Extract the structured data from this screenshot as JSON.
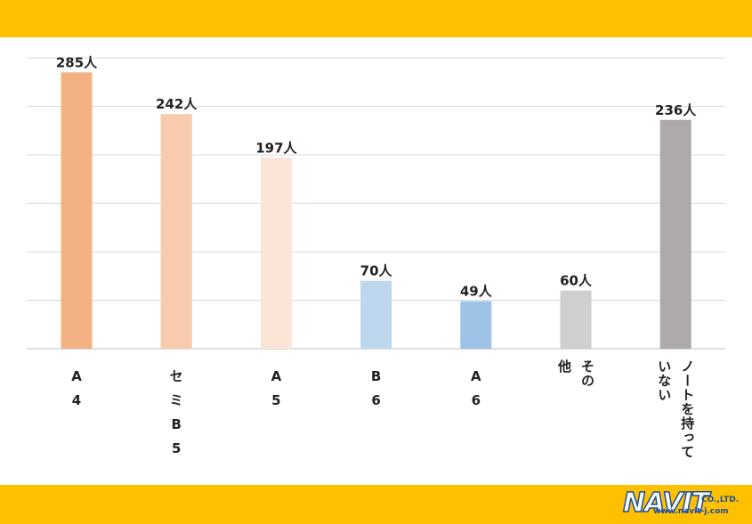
{
  "chart_data": {
    "type": "bar",
    "categories": [
      "A4",
      "セミB5",
      "A5",
      "B6",
      "A6",
      "その他",
      "ノートを持っていない"
    ],
    "values": [
      285,
      242,
      197,
      70,
      49,
      60,
      236
    ],
    "value_suffix": "人",
    "colors": [
      "#F4B183",
      "#F8CBAD",
      "#FBE5D6",
      "#BDD7EE",
      "#9DC3E6",
      "#D0CECE",
      "#AEAAAA"
    ],
    "ylim": [
      0,
      300
    ],
    "grid": true,
    "category_labels": [
      {
        "lines": [
          "A",
          "4"
        ]
      },
      {
        "lines": [
          "セ",
          "ミ",
          "B",
          "5"
        ]
      },
      {
        "lines": [
          "A",
          "5"
        ]
      },
      {
        "lines": [
          "B",
          "6"
        ]
      },
      {
        "lines": [
          "A",
          "6"
        ]
      },
      {
        "lines": [
          "その",
          "他"
        ],
        "vertical": true
      },
      {
        "lines": [
          "ノートを持って",
          "いない"
        ],
        "vertical": true
      }
    ]
  },
  "logo": {
    "word": "NAVIT",
    "suffix": "CO.,LTD.",
    "url": "www.navit-j.com"
  },
  "colors": {
    "band": "#FFC000",
    "gridline": "#D9D9D9",
    "logo_blue": "#1a4fa0"
  }
}
